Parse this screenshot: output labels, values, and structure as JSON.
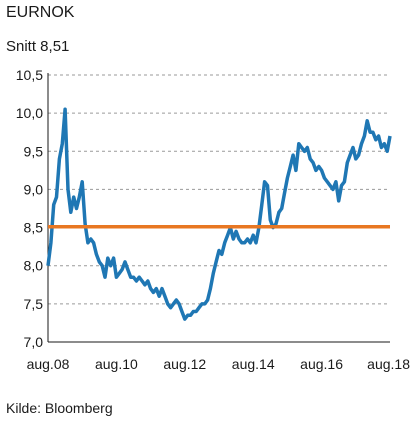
{
  "header": {
    "title": "EURNOK",
    "subtitle": "Snitt 8,51"
  },
  "footer": {
    "source": "Kilde: Bloomberg"
  },
  "chart_data": {
    "type": "line",
    "title": "EURNOK",
    "subtitle": "Snitt 8,51",
    "xlabel": "",
    "ylabel": "",
    "ylim": [
      7.0,
      10.5
    ],
    "xlim": [
      "2008-08",
      "2018-08"
    ],
    "y_ticks": [
      10.5,
      10.0,
      9.5,
      9.0,
      8.5,
      8.0,
      7.5,
      7.0
    ],
    "y_tick_labels": [
      "10,5",
      "10,0",
      "9,5",
      "9,0",
      "8,5",
      "8,0",
      "7,5",
      "7,0"
    ],
    "x_ticks": [
      "2008-08",
      "2010-08",
      "2012-08",
      "2014-08",
      "2016-08",
      "2018-08"
    ],
    "x_tick_labels": [
      "aug.08",
      "aug.10",
      "aug.12",
      "aug.14",
      "aug.16",
      "aug.18"
    ],
    "grid": "horizontal dashed",
    "average_line": {
      "value": 8.51,
      "color": "#e87722"
    },
    "series": [
      {
        "color": "#1f77b4",
        "x": [
          "2008-08",
          "2008-09",
          "2008-10",
          "2008-11",
          "2008-12",
          "2009-01",
          "2009-02",
          "2009-03",
          "2009-04",
          "2009-05",
          "2009-06",
          "2009-07",
          "2009-08",
          "2009-09",
          "2009-10",
          "2009-11",
          "2009-12",
          "2010-01",
          "2010-02",
          "2010-03",
          "2010-04",
          "2010-05",
          "2010-06",
          "2010-07",
          "2010-08",
          "2010-09",
          "2010-10",
          "2010-11",
          "2010-12",
          "2011-01",
          "2011-02",
          "2011-03",
          "2011-04",
          "2011-05",
          "2011-06",
          "2011-07",
          "2011-08",
          "2011-09",
          "2011-10",
          "2011-11",
          "2011-12",
          "2012-01",
          "2012-02",
          "2012-03",
          "2012-04",
          "2012-05",
          "2012-06",
          "2012-07",
          "2012-08",
          "2012-09",
          "2012-10",
          "2012-11",
          "2012-12",
          "2013-01",
          "2013-02",
          "2013-03",
          "2013-04",
          "2013-05",
          "2013-06",
          "2013-07",
          "2013-08",
          "2013-09",
          "2013-10",
          "2013-11",
          "2013-12",
          "2014-01",
          "2014-02",
          "2014-03",
          "2014-04",
          "2014-05",
          "2014-06",
          "2014-07",
          "2014-08",
          "2014-09",
          "2014-10",
          "2014-11",
          "2014-12",
          "2015-01",
          "2015-02",
          "2015-03",
          "2015-04",
          "2015-05",
          "2015-06",
          "2015-07",
          "2015-08",
          "2015-09",
          "2015-10",
          "2015-11",
          "2015-12",
          "2016-01",
          "2016-02",
          "2016-03",
          "2016-04",
          "2016-05",
          "2016-06",
          "2016-07",
          "2016-08",
          "2016-09",
          "2016-10",
          "2016-11",
          "2016-12",
          "2017-01",
          "2017-02",
          "2017-03",
          "2017-04",
          "2017-05",
          "2017-06",
          "2017-07",
          "2017-08",
          "2017-09",
          "2017-10",
          "2017-11",
          "2017-12",
          "2018-01",
          "2018-02",
          "2018-03",
          "2018-04",
          "2018-05",
          "2018-06",
          "2018-07",
          "2018-08"
        ],
        "values": [
          8.0,
          8.3,
          8.8,
          8.9,
          9.4,
          9.6,
          10.05,
          9.0,
          8.7,
          8.9,
          8.75,
          8.9,
          9.1,
          8.55,
          8.3,
          8.35,
          8.3,
          8.15,
          8.05,
          8.0,
          7.85,
          8.1,
          8.0,
          8.1,
          7.85,
          7.9,
          7.95,
          8.05,
          7.95,
          7.85,
          7.85,
          7.8,
          7.85,
          7.8,
          7.75,
          7.8,
          7.7,
          7.65,
          7.7,
          7.6,
          7.7,
          7.6,
          7.5,
          7.45,
          7.5,
          7.55,
          7.5,
          7.4,
          7.3,
          7.35,
          7.35,
          7.4,
          7.4,
          7.45,
          7.5,
          7.5,
          7.55,
          7.7,
          7.9,
          8.05,
          8.2,
          8.15,
          8.3,
          8.4,
          8.5,
          8.35,
          8.45,
          8.35,
          8.3,
          8.3,
          8.35,
          8.3,
          8.4,
          8.3,
          8.5,
          8.8,
          9.1,
          9.05,
          8.6,
          8.5,
          8.55,
          8.7,
          8.75,
          8.95,
          9.15,
          9.3,
          9.45,
          9.25,
          9.6,
          9.55,
          9.5,
          9.55,
          9.4,
          9.35,
          9.25,
          9.3,
          9.25,
          9.15,
          9.1,
          9.05,
          9.0,
          9.1,
          8.85,
          9.05,
          9.1,
          9.35,
          9.45,
          9.55,
          9.4,
          9.45,
          9.6,
          9.7,
          9.9,
          9.75,
          9.75,
          9.65,
          9.7,
          9.55,
          9.6,
          9.5,
          9.7
        ]
      }
    ]
  }
}
